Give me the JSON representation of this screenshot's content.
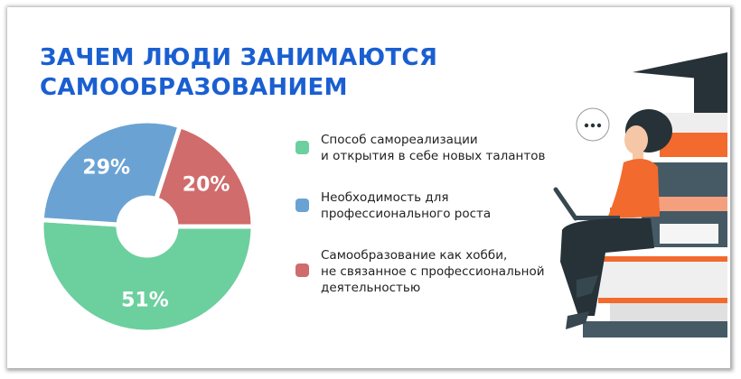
{
  "title": {
    "line1": "ЗАЧЕМ ЛЮДИ ЗАНИМАЮТСЯ",
    "line2": "САМООБРАЗОВАНИЕМ"
  },
  "chart_data": {
    "type": "pie",
    "donut": true,
    "categories": [
      "Способ самореализации и открытия в себе новых талантов",
      "Необходимость для профессионального роста",
      "Самообразование как хобби, не связанное с профессиональной деятельностью"
    ],
    "values": [
      51,
      29,
      20
    ],
    "data_labels": [
      "51%",
      "29%",
      "20%"
    ],
    "colors": [
      "#6ccf9e",
      "#6aa3d3",
      "#d16c6c"
    ],
    "legend_position": "right"
  },
  "legend": [
    {
      "line1": "Способ самореализации",
      "line2": "и открытия в себе новых талантов",
      "color": "#6ccf9e"
    },
    {
      "line1": "Необходимость для",
      "line2": "профессионального роста",
      "color": "#6aa3d3"
    },
    {
      "line1": "Самообразование как хобби,",
      "line2": "не связанное с профессиональной",
      "line3": "деятельностью",
      "color": "#d16c6c"
    }
  ],
  "illustration": {
    "speech_bubble_icon": "ellipsis-icon",
    "subject": "woman-with-laptop-on-books"
  }
}
